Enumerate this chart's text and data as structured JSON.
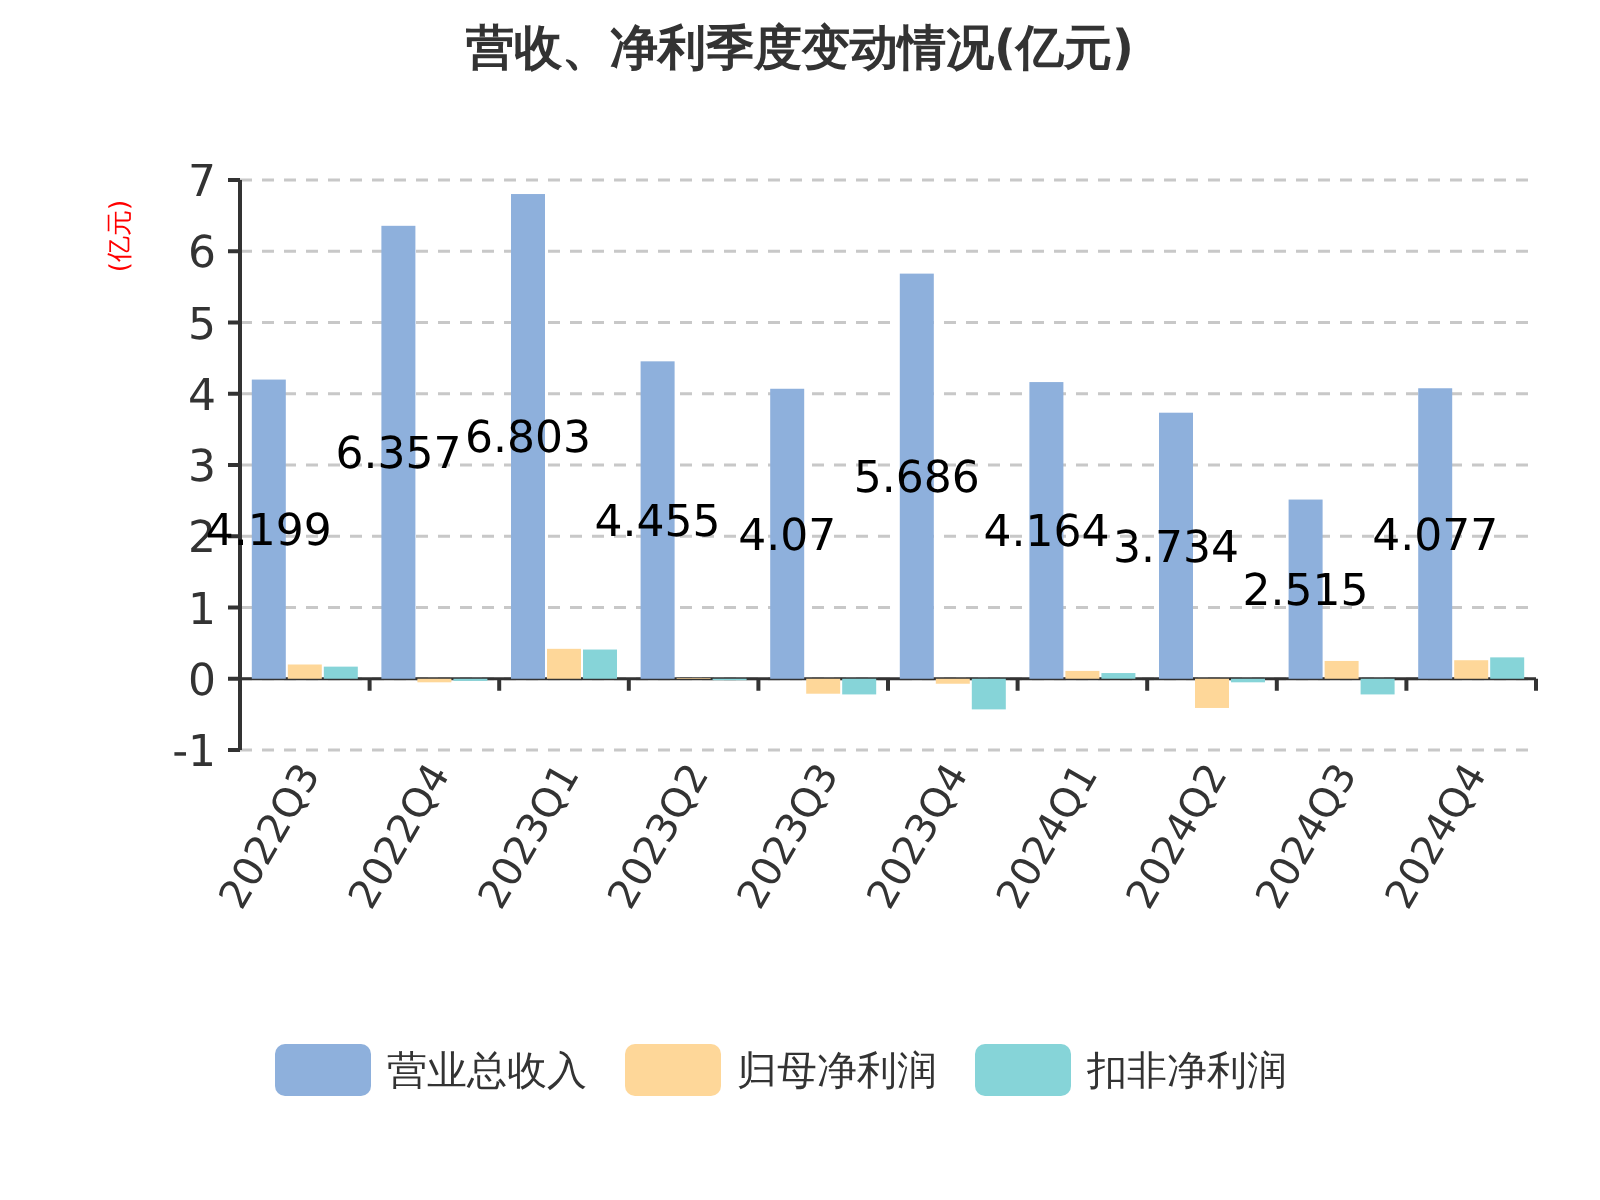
{
  "chart_data": {
    "type": "bar",
    "title": "营收、净利季度变动情况(亿元)",
    "ylabel": "(亿元)",
    "categories": [
      "2022Q3",
      "2022Q4",
      "2023Q1",
      "2023Q2",
      "2023Q3",
      "2023Q4",
      "2024Q1",
      "2024Q2",
      "2024Q3",
      "2024Q4"
    ],
    "series": [
      {
        "name": "营业总收入",
        "color": "#8eb0dc",
        "values": [
          4.199,
          6.357,
          6.803,
          4.455,
          4.07,
          5.686,
          4.164,
          3.734,
          2.515,
          4.077
        ],
        "value_labels": [
          "4.199",
          "6.357",
          "6.803",
          "4.455",
          "4.07",
          "5.686",
          "4.164",
          "3.734",
          "2.515",
          "4.077"
        ]
      },
      {
        "name": "归母净利润",
        "color": "#fed799",
        "values": [
          0.2,
          -0.05,
          0.42,
          0.01,
          -0.21,
          -0.07,
          0.11,
          -0.41,
          0.25,
          0.26
        ]
      },
      {
        "name": "扣非净利润",
        "color": "#86d4d8",
        "values": [
          0.17,
          -0.03,
          0.41,
          -0.02,
          -0.22,
          -0.43,
          0.08,
          -0.05,
          -0.22,
          0.3
        ]
      }
    ],
    "ylim": [
      -1,
      7
    ],
    "yticks": [
      -1,
      0,
      1,
      2,
      3,
      4,
      5,
      6,
      7
    ],
    "grid": "y",
    "legend": "bottom"
  }
}
